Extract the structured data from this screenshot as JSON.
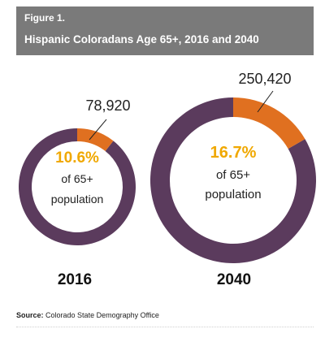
{
  "header": {
    "figure_label": "Figure 1.",
    "title": "Hispanic Coloradans Age 65+, 2016 and 2040"
  },
  "colors": {
    "header_bg": "#7a7a7a",
    "ring_rest": "#5b3b5d",
    "ring_hispanic": "#e07020",
    "percent_text": "#f0a800"
  },
  "chart_data": {
    "type": "pie",
    "title": "Hispanic Coloradans Age 65+, 2016 and 2040",
    "charts": [
      {
        "year": "2016",
        "count": "78,920",
        "percent": 10.6,
        "percent_label": "10.6%",
        "line1": "of 65+",
        "line2": "population"
      },
      {
        "year": "2040",
        "count": "250,420",
        "percent": 16.7,
        "percent_label": "16.7%",
        "line1": "of 65+",
        "line2": "population"
      }
    ]
  },
  "source": {
    "label": "Source:",
    "text": "Colorado State Demography Office"
  }
}
